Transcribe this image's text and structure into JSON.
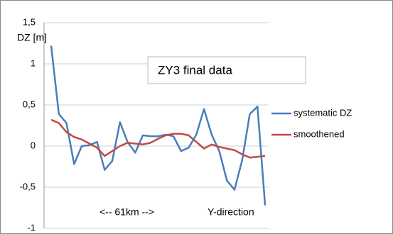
{
  "chart_data": {
    "type": "line",
    "y_label": "DZ [m]",
    "annotations": [
      "ZY3 final data",
      "<-- 61km -->",
      "Y-direction"
    ],
    "categories": [
      null,
      null,
      null,
      null,
      null,
      null,
      null,
      null,
      null,
      null,
      null,
      null,
      null,
      null,
      null,
      null,
      null,
      null,
      null,
      null,
      null,
      null,
      null,
      null,
      null,
      null,
      null,
      null,
      null
    ],
    "series": [
      {
        "name": "systematic DZ",
        "color": "#4a7ebb",
        "values": [
          1.22,
          0.39,
          0.28,
          -0.22,
          0.0,
          0.01,
          0.05,
          -0.29,
          -0.18,
          0.29,
          0.05,
          -0.08,
          0.13,
          0.12,
          0.12,
          0.14,
          0.12,
          -0.06,
          -0.02,
          0.14,
          0.45,
          0.14,
          -0.06,
          -0.42,
          -0.53,
          -0.17,
          0.39,
          0.48,
          -0.72
        ]
      },
      {
        "name": "smoothened",
        "color": "#be4b48",
        "values": [
          0.32,
          0.28,
          0.17,
          0.11,
          0.08,
          0.03,
          -0.02,
          -0.12,
          -0.06,
          0.0,
          0.04,
          0.03,
          0.02,
          0.04,
          0.09,
          0.13,
          0.15,
          0.15,
          0.13,
          0.05,
          -0.03,
          0.02,
          -0.01,
          -0.03,
          -0.05,
          -0.1,
          -0.14,
          -0.13,
          -0.12
        ]
      }
    ],
    "ylim": [
      -1,
      1.5
    ],
    "yticks": [
      {
        "value": -1,
        "label": "-1"
      },
      {
        "value": -0.5,
        "label": "-0,5"
      },
      0,
      {
        "value": 0.5,
        "label": "0,5"
      },
      1,
      {
        "value": 1.5,
        "label": "1,5"
      }
    ],
    "grid": true
  }
}
